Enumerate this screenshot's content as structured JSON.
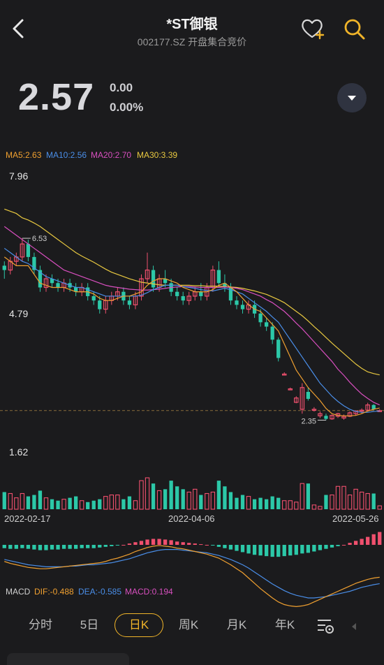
{
  "header": {
    "title": "*ST御银",
    "subtitle": "002177.SZ  开盘集合竞价"
  },
  "quote": {
    "price": "2.57",
    "change": "0.00",
    "change_pct": "0.00%"
  },
  "ma_legend": [
    {
      "label": "MA5:2.63",
      "color": "#f0a030"
    },
    {
      "label": "MA10:2.56",
      "color": "#4a8ee8"
    },
    {
      "label": "MA20:2.70",
      "color": "#d84fbf"
    },
    {
      "label": "MA30:3.39",
      "color": "#e8c840"
    }
  ],
  "price_axis": {
    "high": "7.96",
    "mid": "4.79",
    "low": "1.62"
  },
  "annotations": {
    "max": "6.53",
    "min": "2.35"
  },
  "dates": {
    "start": "2022-02-17",
    "mid": "2022-04-06",
    "end": "2022-05-26"
  },
  "macd_legend": [
    {
      "label": "MACD",
      "color": "#d0d0d0"
    },
    {
      "label": "DIF:-0.488",
      "color": "#f0a030"
    },
    {
      "label": "DEA:-0.585",
      "color": "#4a8ee8"
    },
    {
      "label": "MACD:0.194",
      "color": "#d84fbf"
    }
  ],
  "tabs": [
    "分时",
    "5日",
    "日K",
    "周K",
    "月K",
    "年K"
  ],
  "active_tab": "日K",
  "colors": {
    "up": "#f0506e",
    "down": "#2cc8a8",
    "background": "#1b1b1d",
    "accent": "#f0b429"
  },
  "chart_data": {
    "type": "candlestick",
    "y_range": [
      1.62,
      7.96
    ],
    "last_close": 2.57,
    "ohlc": [
      [
        5.9,
        6.0,
        5.6,
        5.8
      ],
      [
        5.8,
        6.1,
        5.7,
        6.0
      ],
      [
        6.0,
        6.2,
        5.9,
        6.1
      ],
      [
        6.1,
        6.53,
        6.0,
        6.4
      ],
      [
        6.4,
        6.5,
        6.0,
        6.1
      ],
      [
        6.1,
        6.2,
        5.7,
        5.8
      ],
      [
        5.8,
        5.9,
        5.3,
        5.4
      ],
      [
        5.4,
        5.7,
        5.3,
        5.6
      ],
      [
        5.6,
        5.7,
        5.4,
        5.5
      ],
      [
        5.5,
        5.6,
        5.3,
        5.4
      ],
      [
        5.4,
        5.6,
        5.3,
        5.5
      ],
      [
        5.5,
        5.6,
        5.3,
        5.4
      ],
      [
        5.4,
        5.5,
        5.2,
        5.3
      ],
      [
        5.3,
        5.5,
        5.2,
        5.4
      ],
      [
        5.4,
        5.5,
        5.1,
        5.2
      ],
      [
        5.2,
        5.3,
        5.0,
        5.1
      ],
      [
        5.1,
        5.2,
        4.8,
        4.9
      ],
      [
        4.9,
        5.2,
        4.8,
        5.1
      ],
      [
        5.1,
        5.3,
        5.0,
        5.2
      ],
      [
        5.2,
        5.4,
        5.1,
        5.3
      ],
      [
        5.3,
        5.4,
        5.0,
        5.1
      ],
      [
        5.1,
        5.2,
        4.9,
        5.0
      ],
      [
        5.0,
        5.3,
        4.9,
        5.2
      ],
      [
        5.2,
        5.7,
        5.1,
        5.6
      ],
      [
        5.6,
        6.2,
        5.5,
        5.8
      ],
      [
        5.8,
        5.9,
        5.3,
        5.4
      ],
      [
        5.4,
        5.7,
        5.3,
        5.6
      ],
      [
        5.6,
        5.8,
        5.4,
        5.5
      ],
      [
        5.5,
        5.6,
        5.2,
        5.3
      ],
      [
        5.3,
        5.4,
        5.1,
        5.2
      ],
      [
        5.2,
        5.3,
        5.0,
        5.1
      ],
      [
        5.1,
        5.3,
        5.0,
        5.2
      ],
      [
        5.2,
        5.4,
        5.1,
        5.3
      ],
      [
        5.3,
        5.5,
        5.1,
        5.2
      ],
      [
        5.2,
        5.5,
        5.1,
        5.4
      ],
      [
        5.4,
        5.9,
        5.3,
        5.8
      ],
      [
        5.8,
        6.0,
        5.4,
        5.5
      ],
      [
        5.5,
        5.7,
        5.3,
        5.4
      ],
      [
        5.4,
        5.5,
        5.0,
        5.1
      ],
      [
        5.1,
        5.2,
        4.9,
        5.0
      ],
      [
        5.0,
        5.1,
        4.8,
        4.9
      ],
      [
        4.9,
        5.1,
        4.8,
        5.0
      ],
      [
        5.0,
        5.1,
        4.7,
        4.8
      ],
      [
        4.8,
        4.9,
        4.5,
        4.6
      ],
      [
        4.6,
        4.7,
        4.4,
        4.5
      ],
      [
        4.5,
        4.6,
        4.1,
        4.2
      ],
      [
        4.2,
        4.25,
        3.7,
        3.78
      ],
      [
        3.4,
        3.45,
        3.38,
        3.41
      ],
      [
        3.07,
        3.1,
        3.05,
        3.07
      ],
      [
        2.76,
        2.9,
        2.74,
        2.86
      ],
      [
        2.6,
        3.2,
        2.5,
        3.1
      ],
      [
        3.0,
        3.1,
        2.8,
        2.84
      ],
      [
        2.6,
        2.65,
        2.55,
        2.6
      ],
      [
        2.45,
        2.55,
        2.4,
        2.5
      ],
      [
        2.45,
        2.5,
        2.35,
        2.38
      ],
      [
        2.38,
        2.48,
        2.36,
        2.46
      ],
      [
        2.44,
        2.52,
        2.4,
        2.5
      ],
      [
        2.4,
        2.48,
        2.36,
        2.44
      ],
      [
        2.44,
        2.55,
        2.42,
        2.52
      ],
      [
        2.5,
        2.58,
        2.46,
        2.56
      ],
      [
        2.56,
        2.62,
        2.5,
        2.58
      ],
      [
        2.58,
        2.75,
        2.55,
        2.7
      ],
      [
        2.7,
        2.72,
        2.58,
        2.6
      ],
      [
        2.57,
        2.6,
        2.55,
        2.57
      ]
    ],
    "ma5": [
      6.1,
      6.0,
      5.9,
      5.9,
      5.9,
      5.7,
      5.5,
      5.45,
      5.4,
      5.4,
      5.4,
      5.35,
      5.3,
      5.3,
      5.3,
      5.25,
      5.15,
      5.1,
      5.1,
      5.15,
      5.2,
      5.2,
      5.25,
      5.3,
      5.45,
      5.55,
      5.6,
      5.6,
      5.55,
      5.5,
      5.4,
      5.35,
      5.3,
      5.3,
      5.3,
      5.35,
      5.45,
      5.5,
      5.4,
      5.3,
      5.15,
      5.0,
      4.9,
      4.85,
      4.7,
      4.55,
      4.4,
      4.1,
      3.8,
      3.5,
      3.3,
      3.1,
      2.95,
      2.8,
      2.62,
      2.5,
      2.46,
      2.45,
      2.45,
      2.46,
      2.5,
      2.56,
      2.6,
      2.63
    ],
    "ma10": [
      6.3,
      6.2,
      6.1,
      6.0,
      5.95,
      5.85,
      5.75,
      5.65,
      5.6,
      5.55,
      5.5,
      5.45,
      5.4,
      5.4,
      5.35,
      5.3,
      5.25,
      5.2,
      5.2,
      5.2,
      5.2,
      5.2,
      5.2,
      5.22,
      5.28,
      5.35,
      5.4,
      5.45,
      5.45,
      5.45,
      5.42,
      5.4,
      5.38,
      5.35,
      5.33,
      5.32,
      5.35,
      5.38,
      5.35,
      5.3,
      5.25,
      5.15,
      5.05,
      4.95,
      4.85,
      4.72,
      4.6,
      4.4,
      4.2,
      4.0,
      3.8,
      3.6,
      3.4,
      3.2,
      3.05,
      2.9,
      2.78,
      2.68,
      2.6,
      2.55,
      2.53,
      2.53,
      2.55,
      2.56
    ],
    "ma20": [
      6.8,
      6.7,
      6.6,
      6.5,
      6.4,
      6.3,
      6.2,
      6.1,
      6.0,
      5.9,
      5.8,
      5.75,
      5.7,
      5.65,
      5.6,
      5.55,
      5.5,
      5.45,
      5.42,
      5.4,
      5.38,
      5.36,
      5.35,
      5.34,
      5.34,
      5.35,
      5.36,
      5.38,
      5.4,
      5.41,
      5.42,
      5.42,
      5.41,
      5.4,
      5.4,
      5.4,
      5.4,
      5.41,
      5.4,
      5.38,
      5.35,
      5.3,
      5.25,
      5.2,
      5.12,
      5.05,
      4.95,
      4.85,
      4.72,
      4.58,
      4.45,
      4.3,
      4.15,
      4.0,
      3.85,
      3.7,
      3.52,
      3.38,
      3.22,
      3.08,
      2.95,
      2.85,
      2.76,
      2.7
    ],
    "ma30": [
      7.2,
      7.15,
      7.1,
      7.0,
      6.95,
      6.88,
      6.8,
      6.7,
      6.6,
      6.5,
      6.4,
      6.3,
      6.2,
      6.12,
      6.05,
      5.98,
      5.9,
      5.82,
      5.75,
      5.7,
      5.65,
      5.6,
      5.56,
      5.52,
      5.5,
      5.48,
      5.46,
      5.45,
      5.45,
      5.45,
      5.45,
      5.45,
      5.44,
      5.44,
      5.43,
      5.43,
      5.43,
      5.42,
      5.41,
      5.4,
      5.38,
      5.35,
      5.32,
      5.28,
      5.24,
      5.18,
      5.12,
      5.05,
      4.95,
      4.85,
      4.75,
      4.63,
      4.5,
      4.38,
      4.25,
      4.12,
      4.0,
      3.88,
      3.76,
      3.64,
      3.54,
      3.46,
      3.42,
      3.39
    ],
    "volume": [
      60,
      55,
      40,
      55,
      45,
      50,
      65,
      40,
      35,
      30,
      35,
      40,
      45,
      30,
      25,
      30,
      35,
      45,
      50,
      50,
      35,
      45,
      30,
      100,
      110,
      90,
      65,
      70,
      100,
      80,
      70,
      60,
      70,
      50,
      55,
      60,
      100,
      80,
      60,
      40,
      50,
      45,
      35,
      40,
      35,
      45,
      40,
      30,
      30,
      25,
      90,
      90,
      15,
      10,
      50,
      50,
      80,
      80,
      50,
      70,
      60,
      55,
      55,
      12
    ],
    "macd_hist": [
      -0.05,
      -0.06,
      -0.06,
      -0.05,
      -0.06,
      -0.07,
      -0.08,
      -0.08,
      -0.07,
      -0.07,
      -0.06,
      -0.06,
      -0.06,
      -0.05,
      -0.05,
      -0.05,
      -0.04,
      -0.03,
      -0.02,
      -0.01,
      0.0,
      0.02,
      0.04,
      0.06,
      0.08,
      0.09,
      0.09,
      0.08,
      0.07,
      0.05,
      0.04,
      0.03,
      0.02,
      0.01,
      0.0,
      -0.01,
      -0.03,
      -0.05,
      -0.07,
      -0.09,
      -0.11,
      -0.13,
      -0.15,
      -0.16,
      -0.17,
      -0.18,
      -0.18,
      -0.17,
      -0.16,
      -0.15,
      -0.13,
      -0.12,
      -0.1,
      -0.08,
      -0.06,
      -0.04,
      -0.02,
      0.0,
      0.03,
      0.06,
      0.09,
      0.12,
      0.16,
      0.194
    ],
    "dif": [
      -0.25,
      -0.28,
      -0.3,
      -0.32,
      -0.34,
      -0.35,
      -0.36,
      -0.36,
      -0.35,
      -0.34,
      -0.33,
      -0.32,
      -0.31,
      -0.3,
      -0.29,
      -0.28,
      -0.27,
      -0.25,
      -0.22,
      -0.2,
      -0.17,
      -0.14,
      -0.1,
      -0.07,
      -0.04,
      -0.02,
      -0.01,
      -0.02,
      -0.03,
      -0.05,
      -0.06,
      -0.08,
      -0.1,
      -0.12,
      -0.14,
      -0.17,
      -0.2,
      -0.25,
      -0.3,
      -0.36,
      -0.42,
      -0.5,
      -0.58,
      -0.66,
      -0.73,
      -0.8,
      -0.86,
      -0.9,
      -0.92,
      -0.93,
      -0.92,
      -0.9,
      -0.86,
      -0.82,
      -0.78,
      -0.74,
      -0.7,
      -0.66,
      -0.62,
      -0.58,
      -0.55,
      -0.52,
      -0.5,
      -0.488
    ],
    "dea": [
      -0.22,
      -0.24,
      -0.26,
      -0.28,
      -0.3,
      -0.31,
      -0.32,
      -0.33,
      -0.33,
      -0.33,
      -0.33,
      -0.32,
      -0.32,
      -0.31,
      -0.3,
      -0.3,
      -0.29,
      -0.28,
      -0.27,
      -0.25,
      -0.23,
      -0.21,
      -0.18,
      -0.15,
      -0.12,
      -0.1,
      -0.08,
      -0.07,
      -0.07,
      -0.07,
      -0.08,
      -0.09,
      -0.1,
      -0.11,
      -0.12,
      -0.14,
      -0.16,
      -0.19,
      -0.22,
      -0.26,
      -0.3,
      -0.35,
      -0.41,
      -0.47,
      -0.53,
      -0.59,
      -0.64,
      -0.69,
      -0.73,
      -0.76,
      -0.78,
      -0.8,
      -0.8,
      -0.79,
      -0.78,
      -0.76,
      -0.74,
      -0.72,
      -0.7,
      -0.67,
      -0.64,
      -0.62,
      -0.6,
      -0.585
    ]
  }
}
